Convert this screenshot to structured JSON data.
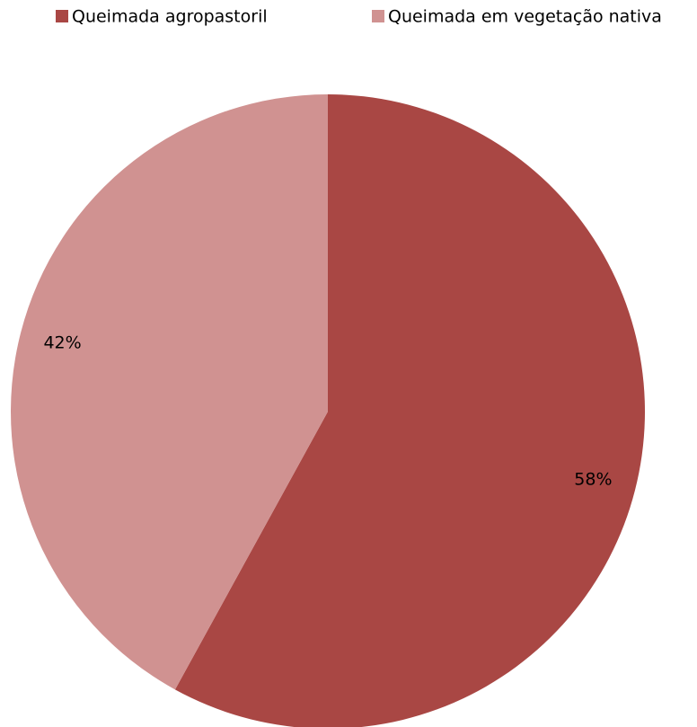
{
  "chart_data": {
    "type": "pie",
    "categories": [
      "Queimada agropastoril",
      "Queimada em vegetação nativa"
    ],
    "values": [
      58,
      42
    ],
    "value_labels": [
      "58%",
      "42%"
    ],
    "colors": [
      "#a94744",
      "#d09291"
    ],
    "legend": "top"
  }
}
